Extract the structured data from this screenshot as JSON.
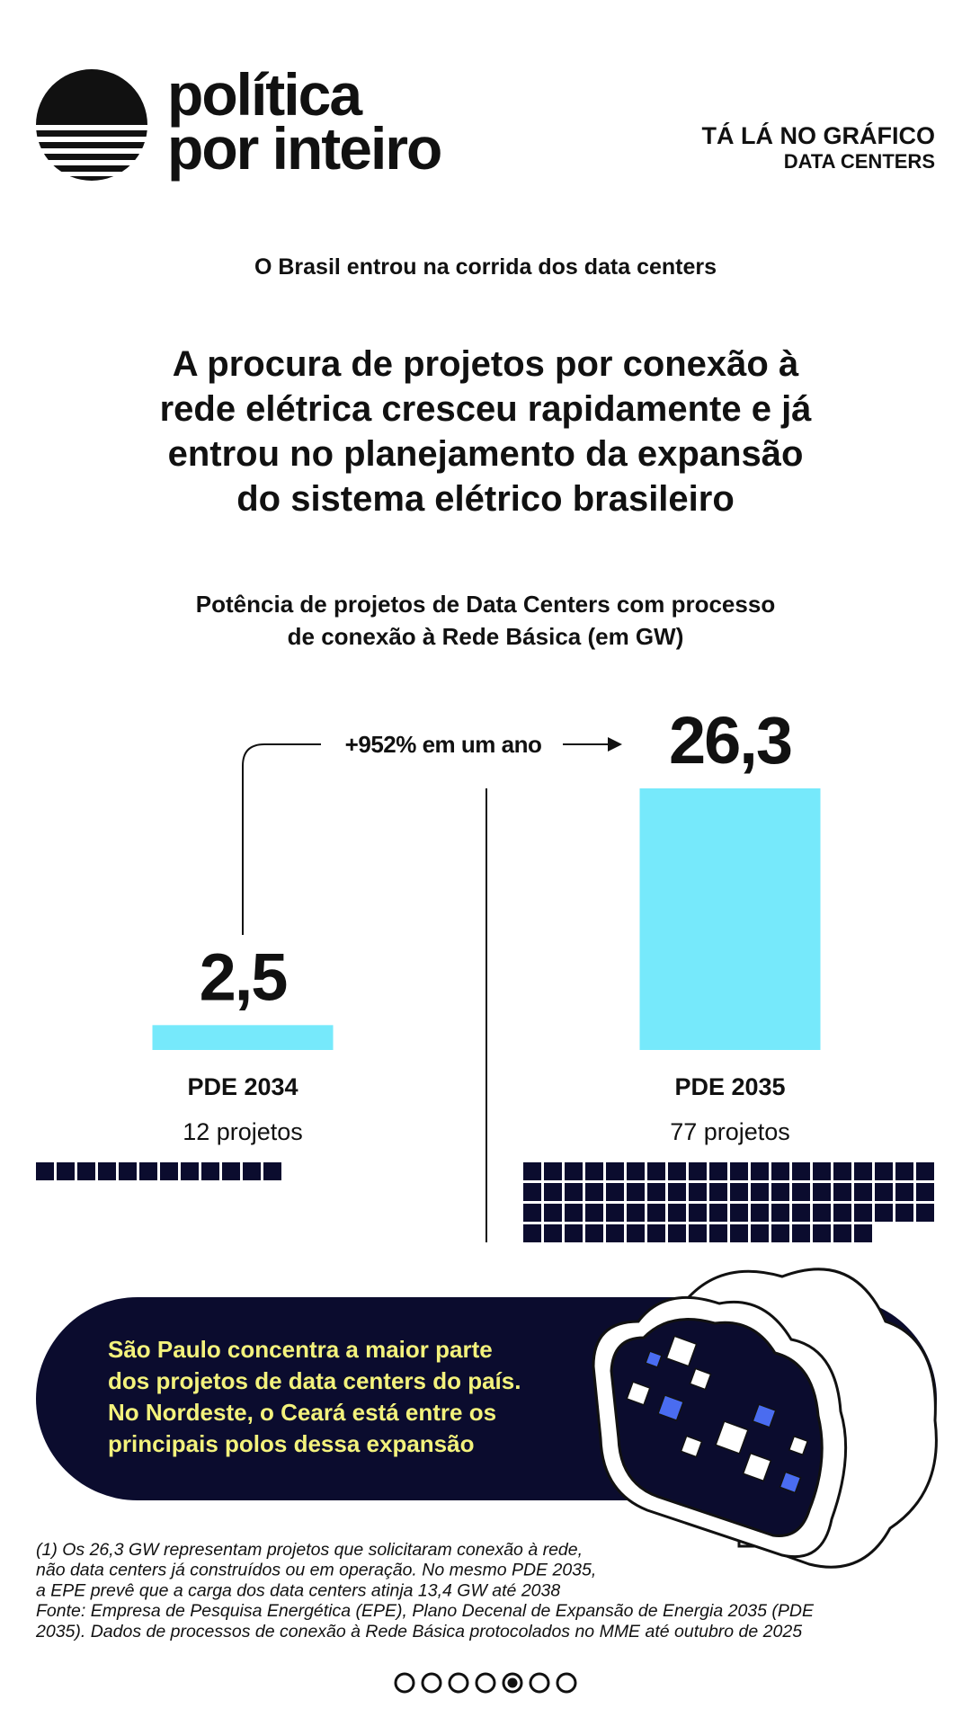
{
  "header": {
    "brand_line1": "política",
    "brand_line2": "por inteiro",
    "section": "TÁ LÁ NO GRÁFICO",
    "topic": "DATA CENTERS"
  },
  "kicker": "O Brasil entrou na corrida dos data centers",
  "headline": [
    "A procura de projetos por conexão à",
    "rede elétrica cresceu rapidamente e já",
    "entrou no planejamento da expansão",
    "do sistema elétrico brasileiro"
  ],
  "chart_data": {
    "type": "bar",
    "title": [
      "Potência de projetos de Data Centers com processo",
      "de conexão à Rede Básica (em GW)"
    ],
    "annotation": "+952% em um ano",
    "categories": [
      "PDE 2034",
      "PDE 2035"
    ],
    "values": [
      2.5,
      26.3
    ],
    "value_labels": [
      "2,5",
      "26,3"
    ],
    "color": "#76e9fb",
    "project_counts": [
      12,
      77
    ],
    "project_count_labels": [
      "12 projetos",
      "77 projetos"
    ]
  },
  "callout": [
    "São Paulo concentra a maior parte",
    "dos projetos de data centers do país.",
    "No Nordeste, o Ceará está entre os",
    "principais polos dessa expansão"
  ],
  "footnote": [
    "(1) Os 26,3 GW representam projetos que solicitaram conexão à rede,",
    "não data centers já construídos ou em operação. No mesmo PDE 2035,",
    "a EPE prevê que a carga dos data centers atinja 13,4 GW até 2038",
    "Fonte: Empresa de Pesquisa Energética (EPE), Plano Decenal de Expansão de Energia 2035 (PDE",
    "2035). Dados de processos de conexão à Rede Básica protocolados no MME até outubro de 2025"
  ]
}
